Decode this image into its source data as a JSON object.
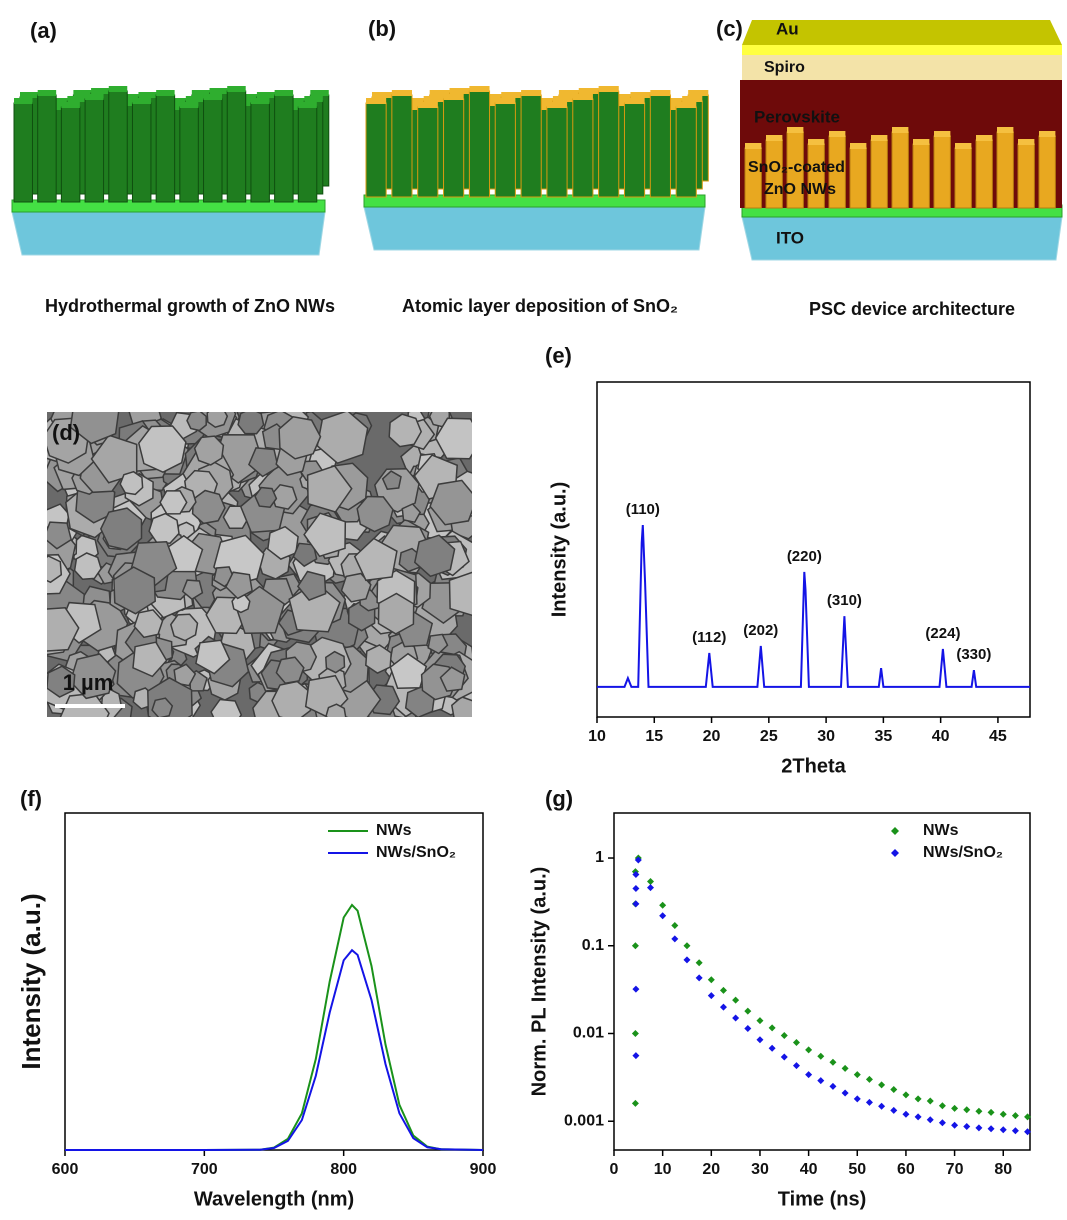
{
  "panels": {
    "a": {
      "label": "(a)",
      "caption": "Hydrothermal growth of ZnO NWs"
    },
    "b": {
      "label": "(b)",
      "caption": "Atomic layer deposition of SnO₂"
    },
    "c": {
      "label": "(c)",
      "caption": "PSC device architecture",
      "layers": {
        "au": "Au",
        "spiro": "Spiro",
        "perovskite": "Perovskite",
        "nw_line1": "SnO₂-coated",
        "nw_line2": "ZnO NWs",
        "ito": "ITO"
      }
    },
    "d": {
      "label": "(d)",
      "scale_bar": "1 µm"
    }
  },
  "chart_data": [
    {
      "type": "line",
      "label": "(e)",
      "xlabel": "2Theta",
      "ylabel": "Intensity (a.u.)",
      "color": "#1414e6",
      "x": [
        10,
        12.4,
        12.7,
        13.0,
        13.6,
        13.9,
        14.0,
        14.2,
        14.5,
        17,
        19.5,
        19.8,
        20.1,
        24.0,
        24.3,
        24.6,
        27.8,
        28.1,
        28.2,
        28.5,
        31.3,
        31.6,
        31.9,
        34.6,
        34.8,
        35.0,
        39.9,
        40.2,
        40.5,
        42.7,
        42.9,
        43.1,
        47.8
      ],
      "values": [
        9,
        9,
        11.6,
        9,
        9,
        52,
        57.3,
        40,
        9,
        9,
        9,
        19.1,
        9,
        9,
        21.2,
        9,
        9,
        43.3,
        38,
        9,
        9,
        30.1,
        9,
        9,
        14.6,
        9,
        9,
        20.3,
        9,
        9,
        14.0,
        9,
        9
      ],
      "xlim": [
        10,
        47.8
      ],
      "xticks": [
        10,
        15,
        20,
        25,
        30,
        35,
        40,
        45
      ],
      "ylim": [
        0,
        100
      ],
      "annotations": [
        {
          "text": "(110)",
          "x": 14.0
        },
        {
          "text": "(112)",
          "x": 19.8
        },
        {
          "text": "(202)",
          "x": 24.3
        },
        {
          "text": "(220)",
          "x": 28.1
        },
        {
          "text": "(310)",
          "x": 31.6
        },
        {
          "text": "(224)",
          "x": 40.2
        },
        {
          "text": "(330)",
          "x": 42.9
        }
      ]
    },
    {
      "type": "line",
      "label": "(f)",
      "xlabel": "Wavelength (nm)",
      "ylabel": "Intensity (a.u.)",
      "legend": "upper right",
      "x": [
        600,
        650,
        700,
        740,
        750,
        760,
        770,
        780,
        790,
        800,
        806,
        810,
        820,
        830,
        840,
        850,
        860,
        870,
        900
      ],
      "series": [
        {
          "name": "NWs",
          "color": "#1a921a",
          "values": [
            0,
            0,
            0,
            0.1,
            0.7,
            3.3,
            10.9,
            27.0,
            50.0,
            69.0,
            72.7,
            71.0,
            54.6,
            31.3,
            13.4,
            4.3,
            1.0,
            0.2,
            0
          ]
        },
        {
          "name": "NWs/SnO₂",
          "color": "#1414e6",
          "values": [
            0,
            0,
            0,
            0.1,
            0.6,
            2.7,
            8.9,
            22.0,
            40.8,
            56.3,
            59.3,
            57.9,
            44.5,
            25.5,
            10.9,
            3.5,
            0.8,
            0.2,
            0
          ]
        }
      ],
      "xlim": [
        600,
        900
      ],
      "xticks": [
        600,
        700,
        800,
        900
      ],
      "ylim": [
        0,
        100
      ]
    },
    {
      "type": "scatter",
      "label": "(g)",
      "xlabel": "Time (ns)",
      "ylabel": "Norm. PL Intensity (a.u.)",
      "legend": "upper right",
      "log_y": true,
      "series": [
        {
          "name": "NWs",
          "color": "#1a921a",
          "x": [
            4.4,
            4.4,
            4.4,
            4.4,
            4.4,
            5,
            7.5,
            10,
            12.5,
            15,
            17.5,
            20,
            22.5,
            25,
            27.5,
            30,
            32.5,
            35,
            37.5,
            40,
            42.5,
            45,
            47.5,
            50,
            52.5,
            55,
            57.5,
            60,
            62.5,
            65,
            67.5,
            70,
            72.5,
            75,
            77.5,
            80,
            82.5,
            85
          ],
          "values": [
            0.0016,
            0.01,
            0.1,
            0.3,
            0.7,
            1.0,
            0.54,
            0.29,
            0.17,
            0.1,
            0.064,
            0.041,
            0.031,
            0.024,
            0.018,
            0.014,
            0.0116,
            0.0095,
            0.0079,
            0.0065,
            0.0055,
            0.0047,
            0.004,
            0.0034,
            0.003,
            0.0026,
            0.0023,
            0.002,
            0.0018,
            0.0017,
            0.0015,
            0.0014,
            0.00135,
            0.0013,
            0.00126,
            0.0012,
            0.00116,
            0.00112
          ]
        },
        {
          "name": "NWs/SnO₂",
          "color": "#1414e6",
          "x": [
            4.5,
            4.5,
            4.5,
            4.5,
            4.5,
            5,
            7.5,
            10,
            12.5,
            15,
            17.5,
            20,
            22.5,
            25,
            27.5,
            30,
            32.5,
            35,
            37.5,
            40,
            42.5,
            45,
            47.5,
            50,
            52.5,
            55,
            57.5,
            60,
            62.5,
            65,
            67.5,
            70,
            72.5,
            75,
            77.5,
            80,
            82.5,
            85
          ],
          "values": [
            0.0056,
            0.032,
            0.3,
            0.45,
            0.65,
            0.95,
            0.46,
            0.22,
            0.12,
            0.069,
            0.043,
            0.027,
            0.02,
            0.015,
            0.0114,
            0.0085,
            0.0068,
            0.0054,
            0.0043,
            0.0034,
            0.0029,
            0.0025,
            0.0021,
            0.0018,
            0.00164,
            0.00148,
            0.00133,
            0.0012,
            0.00112,
            0.00104,
            0.00096,
            0.0009,
            0.00087,
            0.00084,
            0.00082,
            0.0008,
            0.00078,
            0.00076
          ]
        }
      ],
      "xlim": [
        0,
        85.5
      ],
      "xticks": [
        0,
        10,
        20,
        30,
        40,
        50,
        60,
        70,
        80
      ],
      "ylim": [
        0.00047,
        3.26
      ],
      "yticks": [
        0.001,
        0.01,
        0.1,
        1
      ]
    }
  ]
}
